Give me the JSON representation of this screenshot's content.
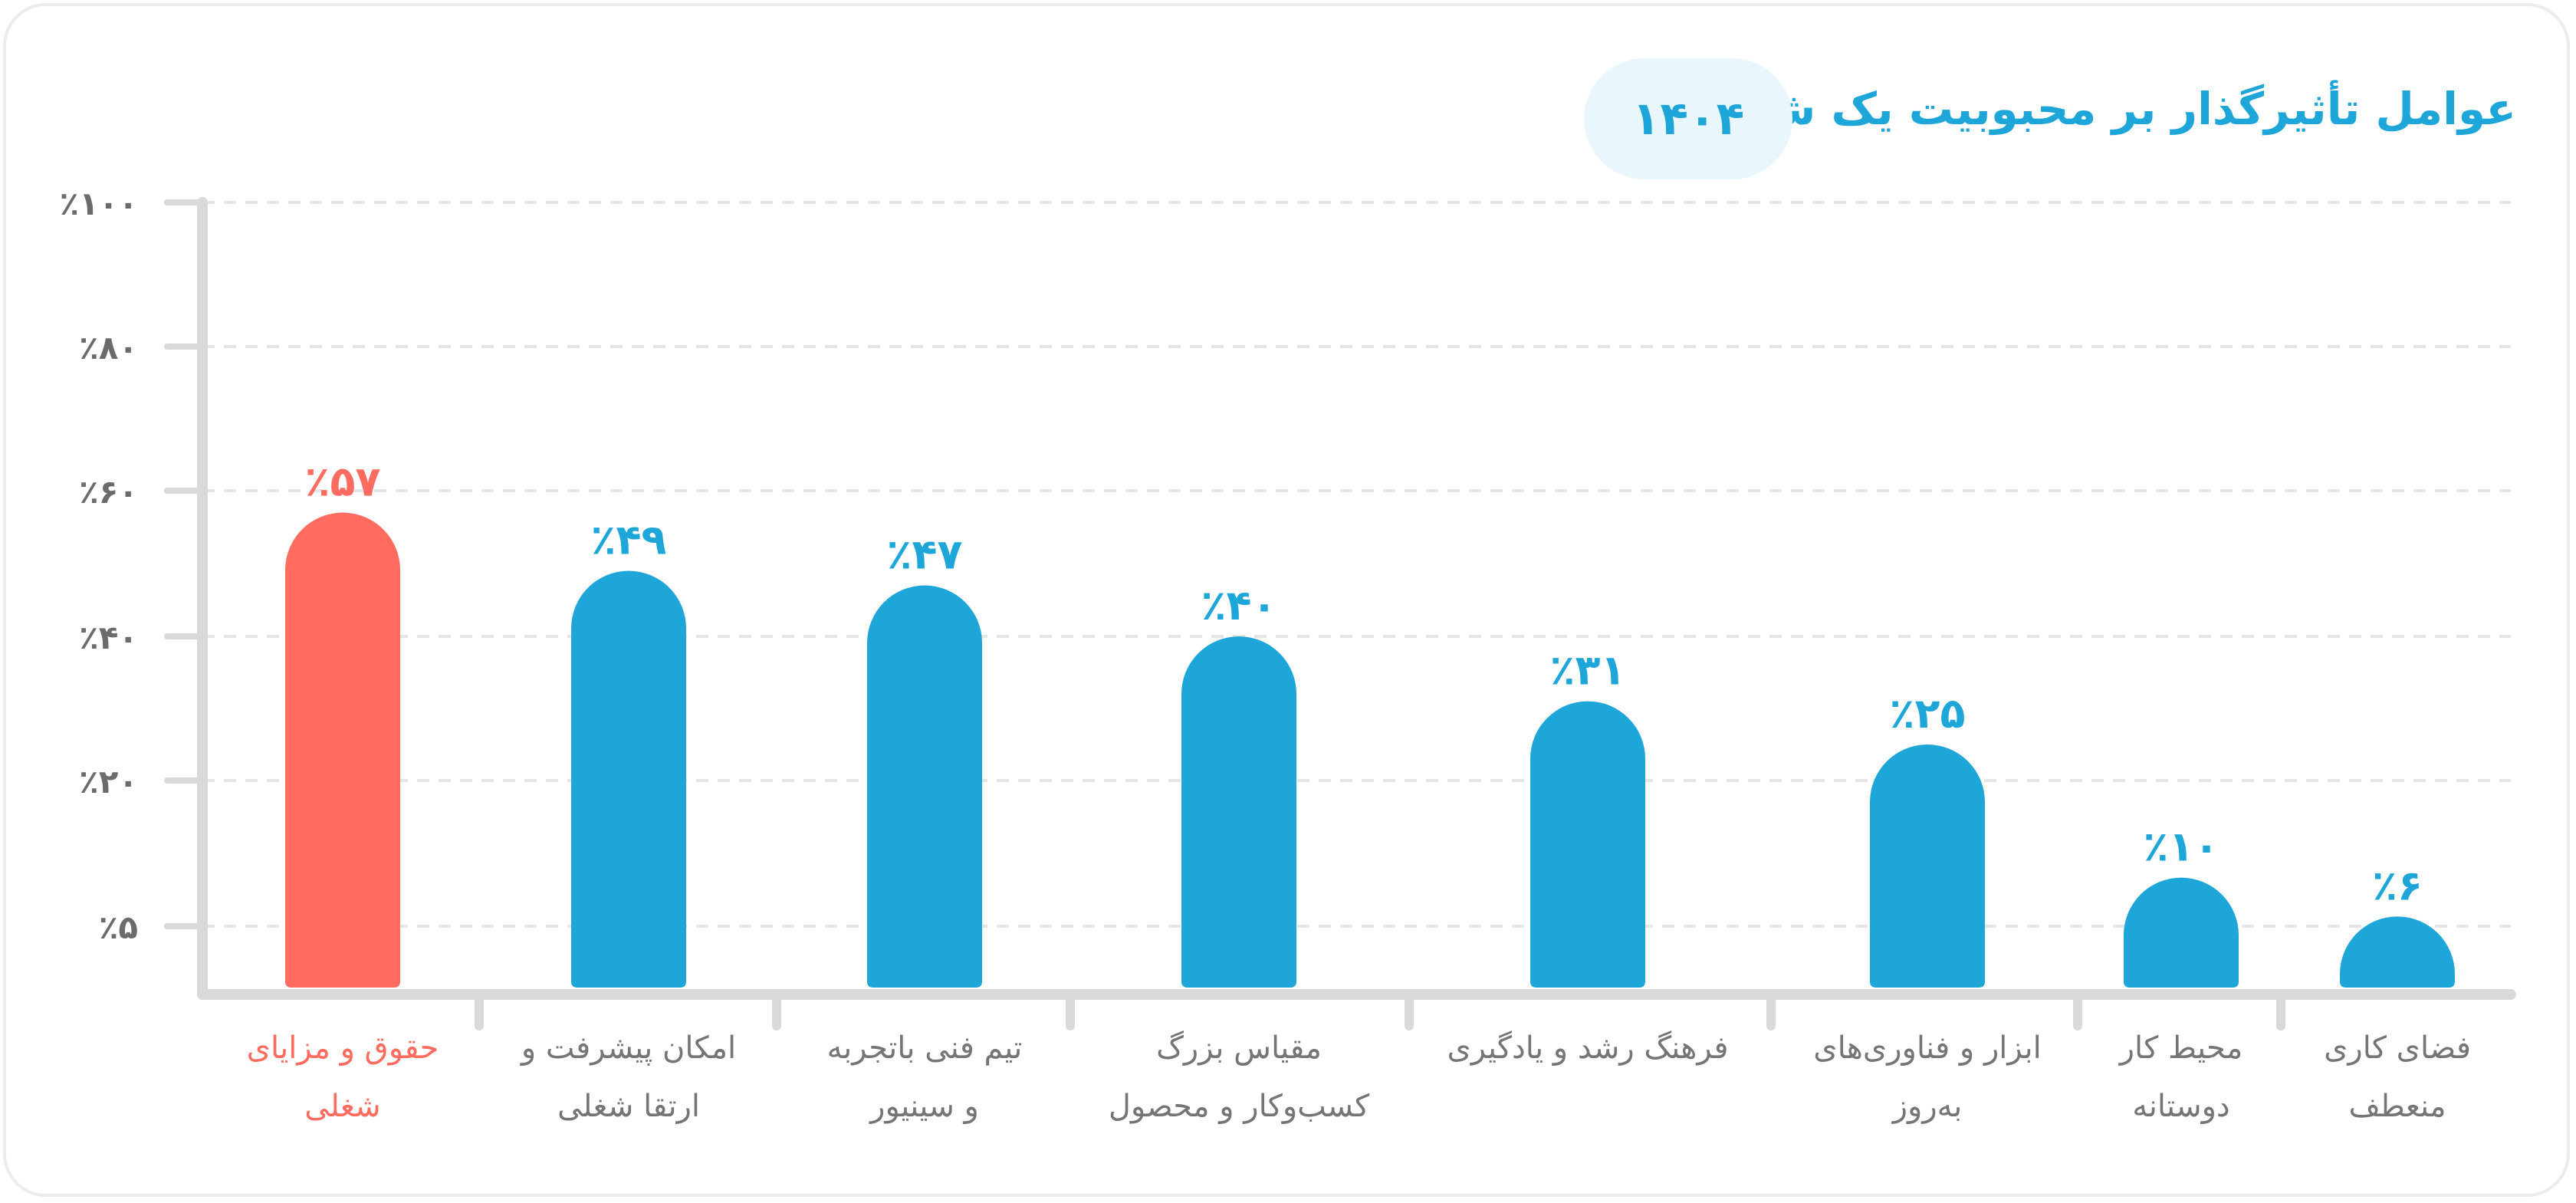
{
  "header": {
    "title": "عوامل تأثیرگذار بر محبوبیت یک شرکت",
    "year": "۱۴۰۴"
  },
  "colors": {
    "accent": "#1ea6d9",
    "highlight": "#ff6b5e",
    "axis": "#d9d9d9",
    "grid": "#e6e6e6",
    "tick_text": "#6b6b6b",
    "label_text": "#757575"
  },
  "chart_data": {
    "type": "bar",
    "title": "عوامل تأثیرگذار بر محبوبیت یک شرکت",
    "xlabel": "",
    "ylabel": "",
    "ylim": [
      0,
      100
    ],
    "grid": true,
    "yticks": [
      5,
      20,
      40,
      60,
      80,
      100
    ],
    "ytick_labels": [
      "٪۵",
      "٪۲۰",
      "٪۴۰",
      "٪۶۰",
      "٪۸۰",
      "٪۱۰۰"
    ],
    "categories": [
      [
        "حقوق و مزایای",
        "شغلی"
      ],
      [
        "امکان پیشرفت و",
        "ارتقا شغلی"
      ],
      [
        "تیم فنی باتجربه",
        "و سینیور"
      ],
      [
        "مقیاس بزرگ",
        "کسب‌وکار و محصول"
      ],
      [
        "فرهنگ رشد و یادگیری"
      ],
      [
        "ابزار و فناوری‌های",
        "به‌روز"
      ],
      [
        "محیط کار",
        "دوستانه"
      ],
      [
        "فضای کاری",
        "منعطف"
      ]
    ],
    "values": [
      57,
      49,
      47,
      40,
      31,
      25,
      10,
      6
    ],
    "value_labels": [
      "٪۵۷",
      "٪۴۹",
      "٪۴۷",
      "٪۴۰",
      "٪۳۱",
      "٪۲۵",
      "٪۱۰",
      "٪۶"
    ],
    "highlight_index": 0
  }
}
